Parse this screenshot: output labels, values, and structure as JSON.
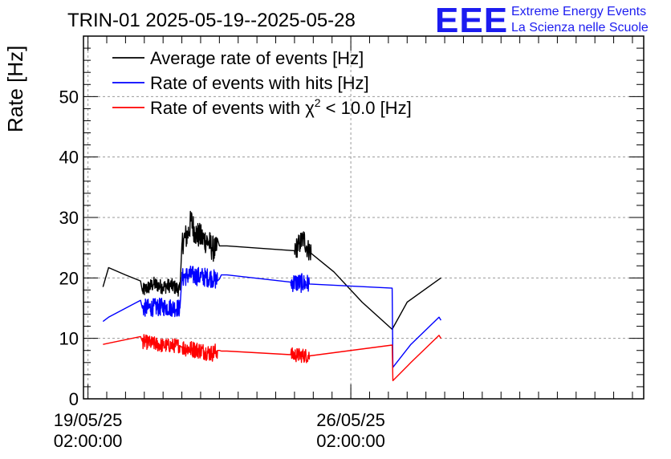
{
  "chart_data": {
    "type": "line",
    "title": "TRIN-01 2025-05-19--2025-05-28",
    "ylabel": "Rate [Hz]",
    "xlabel": "",
    "ylim": [
      0,
      60
    ],
    "xlim": [
      -0.12,
      14.8
    ],
    "yticks": [
      0,
      10,
      20,
      30,
      40,
      50
    ],
    "xticks": [
      {
        "x": 0,
        "date": "19/05/25",
        "time": "02:00:00"
      },
      {
        "x": 7,
        "date": "26/05/25",
        "time": "02:00:00"
      }
    ],
    "x_unit": "days since 19/05/25 02:00:00",
    "grid": true,
    "legend_position": "top-left",
    "series": [
      {
        "name": "Average rate of events [Hz]",
        "color": "#000000",
        "x": [
          0.4,
          0.55,
          1.0,
          1.4,
          1.45,
          1.55,
          1.75,
          2.0,
          2.2,
          2.45,
          2.5,
          2.55,
          2.65,
          2.75,
          2.85,
          2.95,
          3.05,
          3.2,
          3.3,
          3.4,
          3.5,
          3.6,
          3.7,
          5.5,
          5.65,
          5.75,
          5.85,
          6.55,
          7.3,
          8.1,
          8.5,
          9.4
        ],
        "y": [
          18.5,
          21.7,
          20.5,
          19.5,
          17.8,
          18.2,
          19.0,
          18.5,
          18.8,
          18.0,
          25.5,
          26.5,
          27.0,
          29.5,
          27.5,
          27.0,
          26.5,
          26.0,
          25.0,
          24.5,
          25.3,
          25.3,
          25.3,
          24.5,
          25.8,
          26.5,
          24.8,
          21.0,
          16.0,
          11.5,
          16.0,
          20.0
        ],
        "noisy_ranges": [
          [
            1.45,
            2.45,
            1.2
          ],
          [
            2.5,
            3.45,
            2.2
          ],
          [
            5.5,
            5.95,
            1.8
          ]
        ]
      },
      {
        "name": "Rate of events with hits [Hz]",
        "color": "#0000ff",
        "x": [
          0.4,
          0.55,
          1.4,
          1.45,
          2.0,
          2.45,
          2.5,
          2.7,
          3.0,
          3.3,
          3.45,
          3.5,
          3.55,
          3.7,
          5.4,
          5.9,
          8.1,
          8.12,
          8.6,
          9.35,
          9.4
        ],
        "y": [
          12.8,
          13.5,
          16.3,
          15.0,
          15.2,
          15.0,
          20.0,
          20.5,
          20.2,
          20.0,
          19.5,
          19.8,
          20.5,
          20.5,
          19.3,
          19.0,
          18.3,
          5.2,
          9.0,
          13.5,
          13.0
        ],
        "noisy_ranges": [
          [
            1.45,
            2.45,
            1.5
          ],
          [
            2.5,
            3.45,
            1.6
          ],
          [
            5.4,
            5.9,
            1.6
          ]
        ]
      },
      {
        "name": "Rate of events with χ² < 10.0 [Hz]",
        "color": "#ff0000",
        "x": [
          0.4,
          0.55,
          1.4,
          1.45,
          2.0,
          2.45,
          2.5,
          3.0,
          3.3,
          3.45,
          3.5,
          3.55,
          3.7,
          5.4,
          5.9,
          8.1,
          8.12,
          8.6,
          9.35,
          9.4
        ],
        "y": [
          9.0,
          9.2,
          10.3,
          9.5,
          8.8,
          8.8,
          8.5,
          8.0,
          7.5,
          8.0,
          8.0,
          7.9,
          7.9,
          7.3,
          7.1,
          8.9,
          3.0,
          6.0,
          10.5,
          10.0
        ],
        "noisy_ranges": [
          [
            1.45,
            2.45,
            1.2
          ],
          [
            2.5,
            3.45,
            1.4
          ],
          [
            5.4,
            5.9,
            1.2
          ]
        ]
      }
    ]
  },
  "legend": [
    {
      "label": "Average rate of events [Hz]",
      "sup": "",
      "after": "",
      "color": "#000000"
    },
    {
      "label": "Rate of events with hits [Hz]",
      "sup": "",
      "after": "",
      "color": "#0000ff"
    },
    {
      "label": "Rate of events with χ",
      "sup": "2",
      "after": " < 10.0 [Hz]",
      "color": "#ff0000"
    }
  ],
  "branding": {
    "logo": "EEE",
    "line1": "Extreme Energy Events",
    "line2": "La Scienza nelle Scuole",
    "color": "#1c1cf0"
  }
}
